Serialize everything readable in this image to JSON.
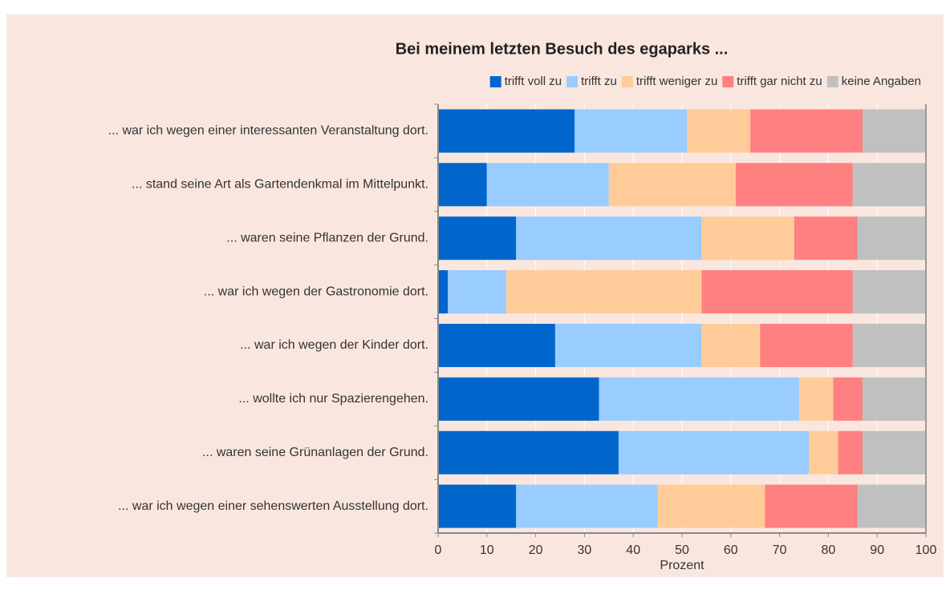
{
  "chart_data": {
    "type": "stacked-barh",
    "title": "Bei meinem letzten Besuch des egaparks ...",
    "x_label": "Prozent",
    "categories": [
      "... war ich wegen einer interessanten Veranstaltung dort.",
      "... stand seine Art als Gartendenkmal im Mittelpunkt.",
      "... waren seine Pflanzen der Grund.",
      "... war ich wegen der Gastronomie dort.",
      "... war ich wegen der Kinder dort.",
      "... wollte ich nur Spazierengehen.",
      "... waren seine Grünanlagen der Grund.",
      "... war ich wegen einer sehenswerten Ausstellung dort."
    ],
    "series": [
      {
        "name": "trifft voll zu",
        "color": "#0066cc",
        "values": [
          28,
          10,
          16,
          2,
          24,
          33,
          37,
          16
        ]
      },
      {
        "name": "trifft zu",
        "color": "#99ccff",
        "values": [
          23,
          25,
          38,
          12,
          30,
          41,
          39,
          29
        ]
      },
      {
        "name": "trifft weniger zu",
        "color": "#ffcc99",
        "values": [
          13,
          26,
          19,
          40,
          12,
          7,
          6,
          22
        ]
      },
      {
        "name": "trifft gar nicht zu",
        "color": "#ff8080",
        "values": [
          23,
          24,
          13,
          31,
          19,
          6,
          5,
          19
        ]
      },
      {
        "name": "keine Angaben",
        "color": "#c0c0c0",
        "values": [
          13,
          15,
          14,
          15,
          15,
          13,
          13,
          14
        ]
      }
    ],
    "xlim": [
      0,
      100
    ],
    "xticks": [
      0,
      10,
      20,
      30,
      40,
      50,
      60,
      70,
      80,
      90,
      100
    ],
    "grid": true
  }
}
